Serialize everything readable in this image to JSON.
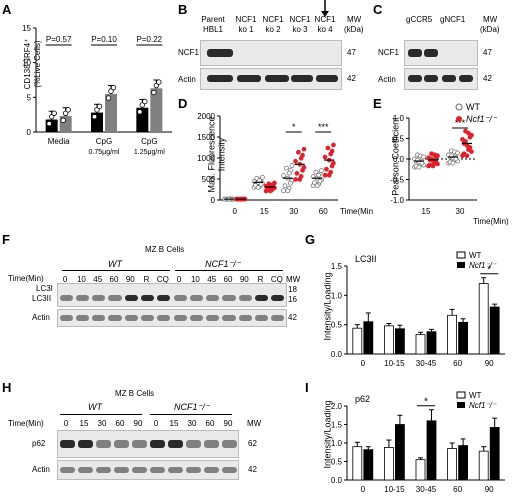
{
  "panel_labels": {
    "a": "A",
    "b": "B",
    "c": "C",
    "d": "D",
    "e": "E",
    "f": "F",
    "g": "G",
    "h": "H",
    "i": "I"
  },
  "panel_a": {
    "ylabel_line1": "CD138⁺IRF4⁺",
    "ylabel_line2": "(%Live Cells)",
    "yticks": [
      "0",
      "5",
      "10",
      "15"
    ],
    "groups": [
      "Media",
      "CpG",
      "CpG"
    ],
    "group_sub": [
      "",
      "0.75μg/ml",
      "1.25μg/ml"
    ],
    "pvalues": [
      "P=0.57",
      "P=0.10",
      "P=0.22"
    ]
  },
  "panel_b": {
    "lanes": [
      "Parent",
      "HBL1",
      "NCF1",
      "ko 1",
      "NCF1",
      "ko 2",
      "NCF1",
      "ko 3",
      "NCF1",
      "ko 4"
    ],
    "mw_header": "MW",
    "mw_unit": "(kDa)",
    "rows": [
      "NCF1",
      "Actin"
    ],
    "mw": [
      "47",
      "42"
    ]
  },
  "panel_c": {
    "lanes": [
      "gCCR5",
      "gNCF1"
    ],
    "mw_header": "MW",
    "mw_unit": "(kDa)",
    "rows": [
      "NCF1",
      "Actin"
    ],
    "mw": [
      "47",
      "42"
    ]
  },
  "panel_d": {
    "ylabel_line1": "Max. Fluorescence",
    "ylabel_line2": "Intensity",
    "yticks": [
      "0",
      "500",
      "1000",
      "1500",
      "2000"
    ],
    "xticks": [
      "0",
      "15",
      "30",
      "60"
    ],
    "xlabel": "Time(Min)",
    "sig": [
      "*",
      "***"
    ]
  },
  "panel_e": {
    "ylabel": "Pearson Coefficient",
    "yticks": [
      "-1.0",
      "-0.5",
      "0.0",
      "0.5",
      "1.0"
    ],
    "xticks": [
      "15",
      "30"
    ],
    "xlabel": "Time(Min)",
    "sig": "***",
    "legend": [
      "WT",
      "Ncf1⁻/⁻"
    ]
  },
  "panel_f": {
    "title": "MZ B Cells",
    "genotypes": [
      "WT",
      "NCF1⁻/⁻"
    ],
    "time_label": "Time(Min)",
    "lanes": [
      "0",
      "10",
      "45",
      "60",
      "90",
      "R",
      "CQ",
      "0",
      "10",
      "45",
      "60",
      "90",
      "R",
      "CQ"
    ],
    "rows": [
      "LC3I",
      "LC3II",
      "Actin"
    ],
    "mw_header": "MW",
    "mw": [
      "18",
      "16",
      "42"
    ]
  },
  "panel_g": {
    "title": "LC3II",
    "ylabel": "Intensity/Loading",
    "yticks": [
      "0.0",
      "0.5",
      "1.0",
      "1.5"
    ],
    "sig": "*",
    "legend": [
      "WT",
      "Ncf1⁻/⁻"
    ]
  },
  "panel_h": {
    "title": "MZ B Cells",
    "genotypes": [
      "WT",
      "NCF1⁻/⁻"
    ],
    "time_label": "Time(Min)",
    "lanes": [
      "0",
      "15",
      "30",
      "60",
      "90",
      "0",
      "15",
      "30",
      "60",
      "90"
    ],
    "rows": [
      "p62",
      "Actin"
    ],
    "mw_header": "MW",
    "mw": [
      "62",
      "42"
    ]
  },
  "panel_i": {
    "title": "p62",
    "ylabel": "Intensity/Loading",
    "yticks": [
      "0.0",
      "0.5",
      "1.0",
      "1.5",
      "2.0"
    ],
    "sig": "*",
    "legend": [
      "WT",
      "Ncf1⁻/⁻"
    ]
  },
  "chart_data": [
    {
      "id": "A",
      "type": "bar",
      "categories": [
        "Media",
        "CpG 0.75μg/ml",
        "CpG 1.25μg/ml"
      ],
      "series": [
        {
          "values": [
            1.8,
            2.8,
            3.5
          ],
          "color": "#000000"
        },
        {
          "values": [
            2.3,
            5.5,
            6.3
          ],
          "color": "#808080"
        }
      ],
      "ylim": [
        0,
        15
      ]
    },
    {
      "id": "G",
      "type": "bar",
      "title": "LC3II",
      "categories": [
        "0",
        "10-15",
        "30-45",
        "60",
        "90"
      ],
      "series": [
        {
          "name": "WT",
          "values": [
            0.44,
            0.48,
            0.33,
            0.66,
            1.2
          ],
          "errors": [
            0.06,
            0.04,
            0.04,
            0.1,
            0.1
          ],
          "color": "#ffffff"
        },
        {
          "name": "Ncf1⁻/⁻",
          "values": [
            0.55,
            0.43,
            0.38,
            0.54,
            0.8
          ],
          "errors": [
            0.15,
            0.06,
            0.04,
            0.06,
            0.05
          ],
          "color": "#000000"
        }
      ],
      "ylabel": "Intensity/Loading",
      "ylim": [
        0,
        1.5
      ]
    },
    {
      "id": "I",
      "type": "bar",
      "title": "p62",
      "categories": [
        "0",
        "10-15",
        "30-45",
        "60",
        "90"
      ],
      "series": [
        {
          "name": "WT",
          "values": [
            0.9,
            0.88,
            0.55,
            0.85,
            0.78
          ],
          "errors": [
            0.12,
            0.2,
            0.05,
            0.15,
            0.12
          ],
          "color": "#ffffff"
        },
        {
          "name": "Ncf1⁻/⁻",
          "values": [
            0.82,
            1.5,
            1.6,
            0.93,
            1.42
          ],
          "errors": [
            0.08,
            0.25,
            0.3,
            0.18,
            0.25
          ],
          "color": "#000000"
        }
      ],
      "ylabel": "Intensity/Loading",
      "ylim": [
        0,
        2.0
      ]
    },
    {
      "id": "D",
      "type": "scatter",
      "categories": [
        "0",
        "15",
        "30",
        "60"
      ],
      "series": [
        {
          "name": "WT",
          "means": [
            20,
            420,
            520,
            520
          ],
          "color": "#888888"
        },
        {
          "name": "Ncf1⁻/⁻",
          "means": [
            20,
            310,
            850,
            950
          ],
          "color": "#e0202a"
        }
      ],
      "ylim": [
        0,
        2000
      ]
    },
    {
      "id": "E",
      "type": "scatter",
      "categories": [
        "15",
        "30"
      ],
      "series": [
        {
          "name": "WT",
          "means": [
            -0.05,
            0.05
          ],
          "color": "#888888"
        },
        {
          "name": "Ncf1⁻/⁻",
          "means": [
            -0.02,
            0.38
          ],
          "color": "#e0202a"
        }
      ],
      "ylim": [
        -1.0,
        1.0
      ]
    }
  ]
}
